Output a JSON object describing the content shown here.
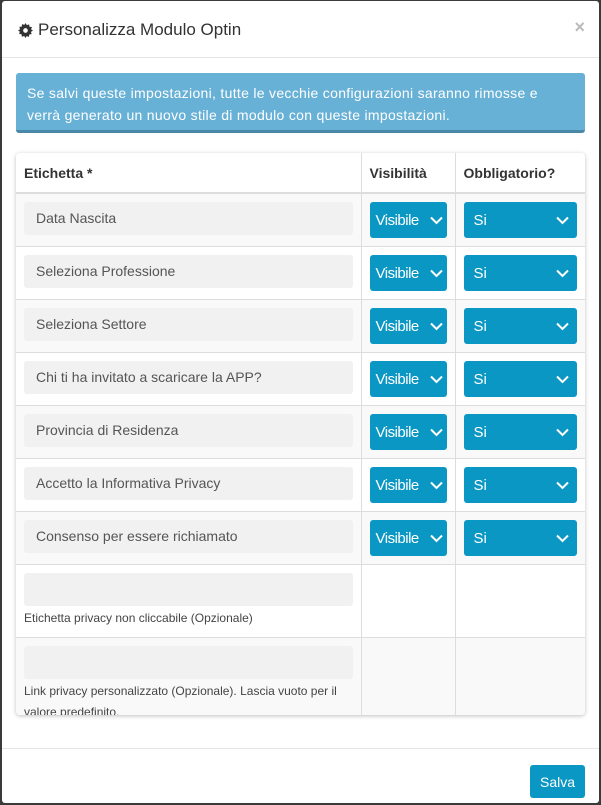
{
  "modal": {
    "title": "Personalizza Modulo Optin",
    "close": "×",
    "alert": "Se salvi queste impostazioni, tutte le vecchie configurazioni saranno rimosse e verrà generato un nuovo stile di modulo con queste impostazioni.",
    "save": "Salva"
  },
  "table": {
    "headers": [
      "Etichetta *",
      "Visibilità",
      "Obbligatorio?"
    ],
    "rows": [
      {
        "label": "Data Nascita",
        "visibility": "Visibile",
        "required": "Si"
      },
      {
        "label": "Seleziona Professione",
        "visibility": "Visibile",
        "required": "Si"
      },
      {
        "label": "Seleziona Settore",
        "visibility": "Visibile",
        "required": "Si"
      },
      {
        "label": "Chi ti ha invitato a scaricare la APP?",
        "visibility": "Visibile",
        "required": "Si"
      },
      {
        "label": "Provincia di Residenza",
        "visibility": "Visibile",
        "required": "Si"
      },
      {
        "label": "Accetto la Informativa Privacy",
        "visibility": "Visibile",
        "required": "Si"
      },
      {
        "label": "Consenso per essere richiamato",
        "visibility": "Visibile",
        "required": "Si"
      }
    ],
    "privacy_label": {
      "value": "",
      "help": "Etichetta privacy non cliccabile (Opzionale)"
    },
    "privacy_link": {
      "value": "",
      "help": "Link privacy personalizzato (Opzionale). Lascia vuoto per il valore predefinito."
    }
  },
  "colors": {
    "accent": "#0b97c4",
    "alert": "#67b0d6"
  }
}
